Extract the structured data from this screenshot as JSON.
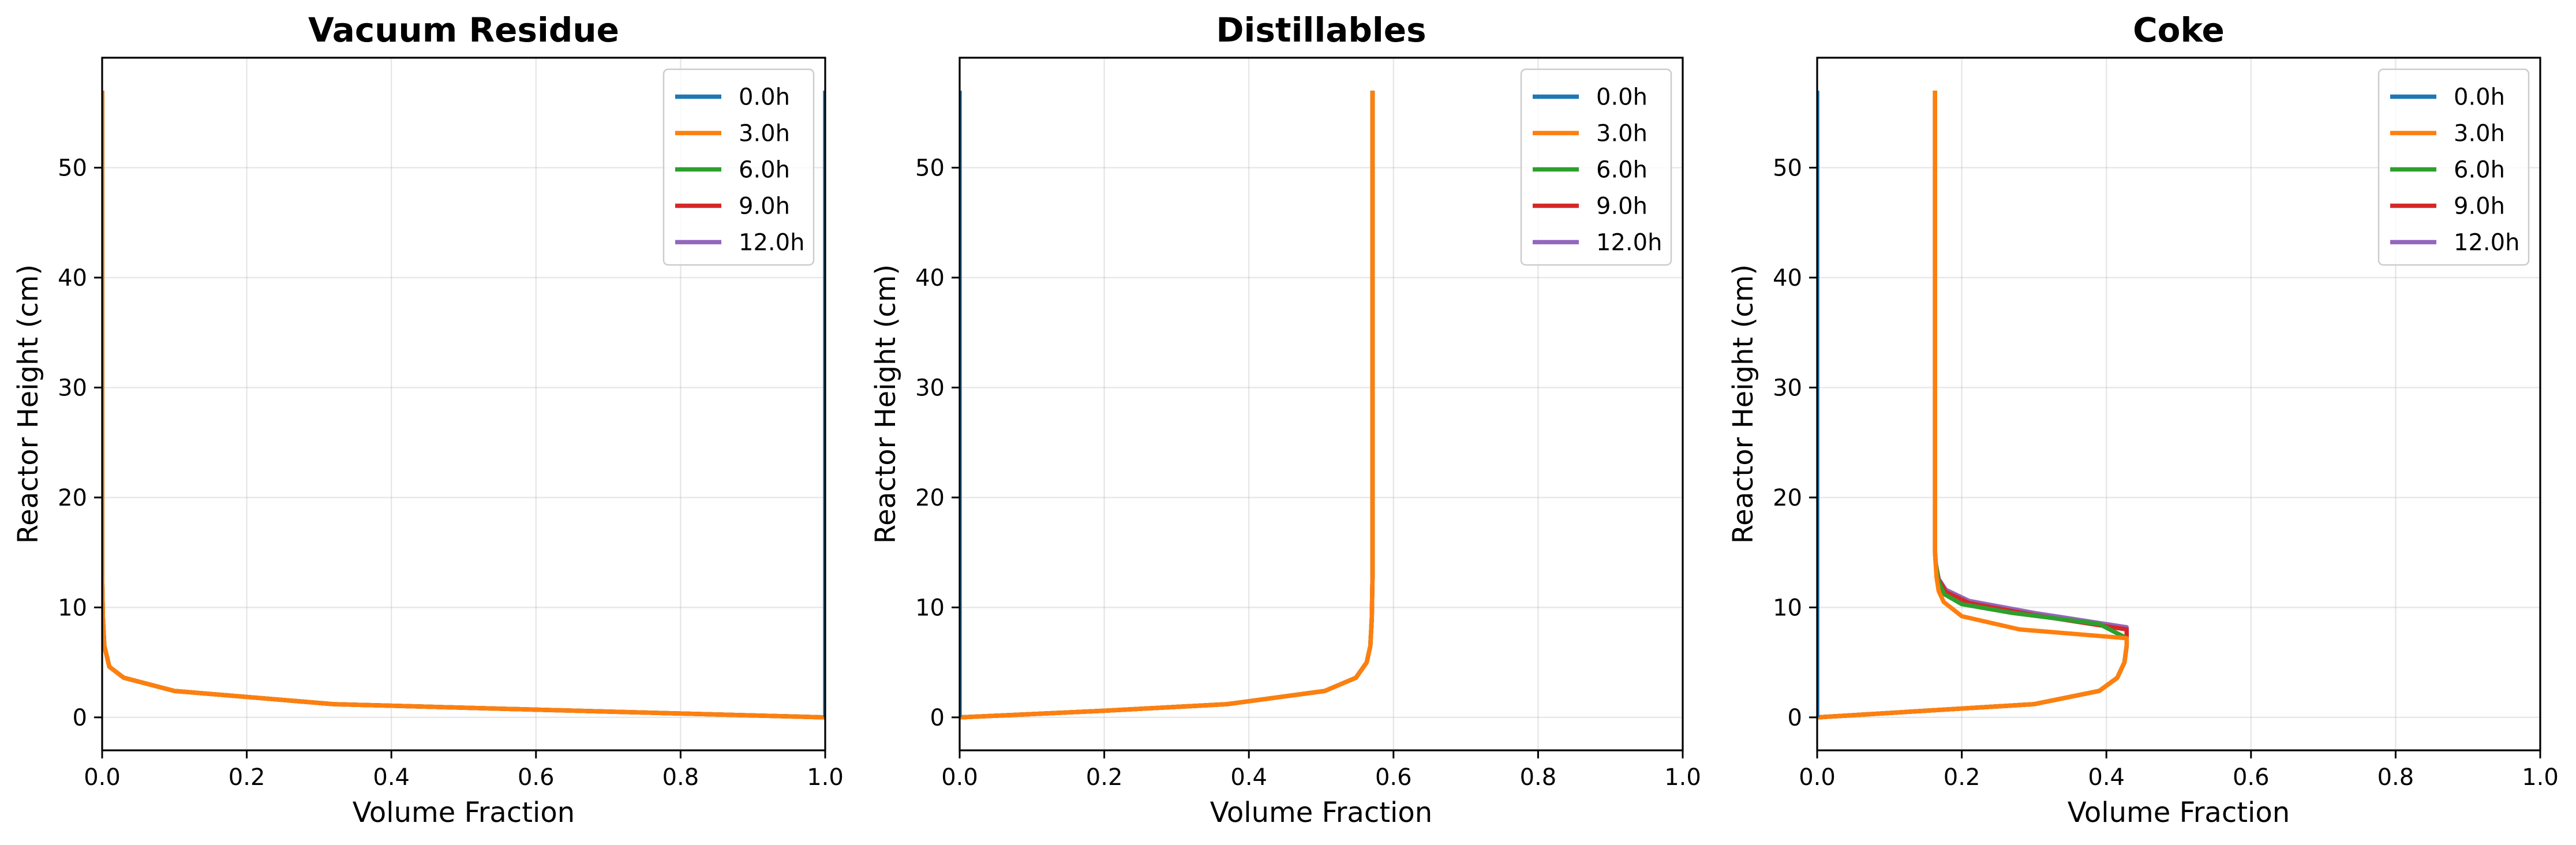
{
  "chart_data": [
    {
      "type": "line",
      "title": "Vacuum Residue",
      "xlabel": "Volume Fraction",
      "ylabel": "Reactor Height (cm)",
      "xlim": [
        0,
        1
      ],
      "ylim": [
        -3,
        60
      ],
      "xticks": [
        "0.0",
        "0.2",
        "0.4",
        "0.6",
        "0.8",
        "1.0"
      ],
      "yticks": [
        "0",
        "10",
        "20",
        "30",
        "40",
        "50"
      ],
      "grid": true,
      "legend": "top-right",
      "series": [
        {
          "name": "0.0h",
          "color": "#1f77b4",
          "points": [
            [
              1.0,
              0
            ],
            [
              1.0,
              57
            ]
          ]
        },
        {
          "name": "3.0h",
          "color": "#ff7f0e",
          "points": [
            [
              1.0,
              0
            ],
            [
              0.6,
              0.7
            ],
            [
              0.32,
              1.2
            ],
            [
              0.1,
              2.4
            ],
            [
              0.03,
              3.6
            ],
            [
              0.01,
              4.6
            ],
            [
              0.003,
              6.5
            ],
            [
              0.001,
              9
            ],
            [
              0.0,
              13
            ],
            [
              0.0,
              57
            ]
          ]
        },
        {
          "name": "6.0h",
          "color": "#2ca02c",
          "points": [
            [
              1.0,
              0
            ],
            [
              0.6,
              0.7
            ],
            [
              0.32,
              1.2
            ],
            [
              0.1,
              2.4
            ],
            [
              0.03,
              3.6
            ],
            [
              0.01,
              4.6
            ],
            [
              0.003,
              6.5
            ],
            [
              0.001,
              9
            ],
            [
              0.0,
              13
            ],
            [
              0.0,
              57
            ]
          ]
        },
        {
          "name": "9.0h",
          "color": "#d62728",
          "points": [
            [
              1.0,
              0
            ],
            [
              0.6,
              0.7
            ],
            [
              0.32,
              1.2
            ],
            [
              0.1,
              2.4
            ],
            [
              0.03,
              3.6
            ],
            [
              0.01,
              4.6
            ],
            [
              0.003,
              6.5
            ],
            [
              0.001,
              9
            ],
            [
              0.0,
              13
            ],
            [
              0.0,
              57
            ]
          ]
        },
        {
          "name": "12.0h",
          "color": "#9467bd",
          "points": [
            [
              1.0,
              0
            ],
            [
              0.6,
              0.7
            ],
            [
              0.32,
              1.2
            ],
            [
              0.1,
              2.4
            ],
            [
              0.03,
              3.6
            ],
            [
              0.01,
              4.6
            ],
            [
              0.003,
              6.5
            ],
            [
              0.001,
              9
            ],
            [
              0.0,
              13
            ],
            [
              0.0,
              57
            ]
          ]
        }
      ]
    },
    {
      "type": "line",
      "title": "Distillables",
      "xlabel": "Volume Fraction",
      "ylabel": "Reactor Height (cm)",
      "xlim": [
        0,
        1
      ],
      "ylim": [
        -3,
        60
      ],
      "xticks": [
        "0.0",
        "0.2",
        "0.4",
        "0.6",
        "0.8",
        "1.0"
      ],
      "yticks": [
        "0",
        "10",
        "20",
        "30",
        "40",
        "50"
      ],
      "grid": true,
      "legend": "top-right",
      "series": [
        {
          "name": "0.0h",
          "color": "#1f77b4",
          "points": [
            [
              0.0,
              0
            ],
            [
              0.0,
              57
            ]
          ]
        },
        {
          "name": "3.0h",
          "color": "#ff7f0e",
          "points": [
            [
              0.0,
              0
            ],
            [
              0.2,
              0.6
            ],
            [
              0.37,
              1.2
            ],
            [
              0.505,
              2.4
            ],
            [
              0.548,
              3.6
            ],
            [
              0.563,
              5.0
            ],
            [
              0.568,
              6.5
            ],
            [
              0.57,
              9
            ],
            [
              0.571,
              13
            ],
            [
              0.571,
              57
            ]
          ]
        },
        {
          "name": "6.0h",
          "color": "#2ca02c",
          "points": [
            [
              0.0,
              0
            ],
            [
              0.2,
              0.6
            ],
            [
              0.37,
              1.2
            ],
            [
              0.505,
              2.4
            ],
            [
              0.548,
              3.6
            ],
            [
              0.563,
              5.0
            ],
            [
              0.568,
              6.5
            ],
            [
              0.57,
              9
            ],
            [
              0.571,
              13
            ],
            [
              0.571,
              57
            ]
          ]
        },
        {
          "name": "9.0h",
          "color": "#d62728",
          "points": [
            [
              0.0,
              0
            ],
            [
              0.2,
              0.6
            ],
            [
              0.37,
              1.2
            ],
            [
              0.505,
              2.4
            ],
            [
              0.548,
              3.6
            ],
            [
              0.563,
              5.0
            ],
            [
              0.568,
              6.5
            ],
            [
              0.57,
              9
            ],
            [
              0.571,
              13
            ],
            [
              0.571,
              57
            ]
          ]
        },
        {
          "name": "12.0h",
          "color": "#9467bd",
          "points": [
            [
              0.0,
              0
            ],
            [
              0.2,
              0.6
            ],
            [
              0.37,
              1.2
            ],
            [
              0.505,
              2.4
            ],
            [
              0.548,
              3.6
            ],
            [
              0.563,
              5.0
            ],
            [
              0.568,
              6.5
            ],
            [
              0.57,
              9
            ],
            [
              0.571,
              13
            ],
            [
              0.571,
              57
            ]
          ]
        }
      ]
    },
    {
      "type": "line",
      "title": "Coke",
      "xlabel": "Volume Fraction",
      "ylabel": "Reactor Height (cm)",
      "xlim": [
        0,
        1
      ],
      "ylim": [
        -3,
        60
      ],
      "xticks": [
        "0.0",
        "0.2",
        "0.4",
        "0.6",
        "0.8",
        "1.0"
      ],
      "yticks": [
        "0",
        "10",
        "20",
        "30",
        "40",
        "50"
      ],
      "grid": true,
      "legend": "top-right",
      "series": [
        {
          "name": "0.0h",
          "color": "#1f77b4",
          "points": [
            [
              0.0,
              0
            ],
            [
              0.0,
              57
            ]
          ]
        },
        {
          "name": "3.0h",
          "color": "#ff7f0e",
          "points": [
            [
              0.0,
              0
            ],
            [
              0.15,
              0.6
            ],
            [
              0.3,
              1.2
            ],
            [
              0.39,
              2.4
            ],
            [
              0.415,
              3.6
            ],
            [
              0.425,
              5.0
            ],
            [
              0.428,
              6.5
            ],
            [
              0.428,
              7.2
            ],
            [
              0.28,
              8.0
            ],
            [
              0.2,
              9.2
            ],
            [
              0.175,
              10.5
            ],
            [
              0.168,
              11.5
            ],
            [
              0.165,
              12.8
            ],
            [
              0.163,
              15
            ],
            [
              0.163,
              57
            ]
          ]
        },
        {
          "name": "6.0h",
          "color": "#2ca02c",
          "points": [
            [
              0.0,
              0
            ],
            [
              0.15,
              0.6
            ],
            [
              0.3,
              1.2
            ],
            [
              0.39,
              2.4
            ],
            [
              0.415,
              3.6
            ],
            [
              0.425,
              5.0
            ],
            [
              0.428,
              6.5
            ],
            [
              0.428,
              7.2
            ],
            [
              0.39,
              8.5
            ],
            [
              0.27,
              9.5
            ],
            [
              0.2,
              10.3
            ],
            [
              0.176,
              11.2
            ],
            [
              0.168,
              12.3
            ],
            [
              0.164,
              14
            ],
            [
              0.163,
              15
            ],
            [
              0.163,
              57
            ]
          ]
        },
        {
          "name": "9.0h",
          "color": "#d62728",
          "points": [
            [
              0.0,
              0
            ],
            [
              0.15,
              0.6
            ],
            [
              0.3,
              1.2
            ],
            [
              0.39,
              2.4
            ],
            [
              0.415,
              3.6
            ],
            [
              0.425,
              5.0
            ],
            [
              0.428,
              6.5
            ],
            [
              0.428,
              8.0
            ],
            [
              0.3,
              9.3
            ],
            [
              0.21,
              10.4
            ],
            [
              0.178,
              11.4
            ],
            [
              0.168,
              12.5
            ],
            [
              0.164,
              14
            ],
            [
              0.163,
              15
            ],
            [
              0.163,
              57
            ]
          ]
        },
        {
          "name": "12.0h",
          "color": "#9467bd",
          "points": [
            [
              0.0,
              0
            ],
            [
              0.15,
              0.6
            ],
            [
              0.3,
              1.2
            ],
            [
              0.39,
              2.4
            ],
            [
              0.415,
              3.6
            ],
            [
              0.425,
              5.0
            ],
            [
              0.428,
              6.5
            ],
            [
              0.428,
              8.2
            ],
            [
              0.3,
              9.5
            ],
            [
              0.21,
              10.6
            ],
            [
              0.178,
              11.6
            ],
            [
              0.168,
              12.6
            ],
            [
              0.164,
              14
            ],
            [
              0.163,
              15
            ],
            [
              0.163,
              57
            ]
          ]
        }
      ]
    }
  ]
}
